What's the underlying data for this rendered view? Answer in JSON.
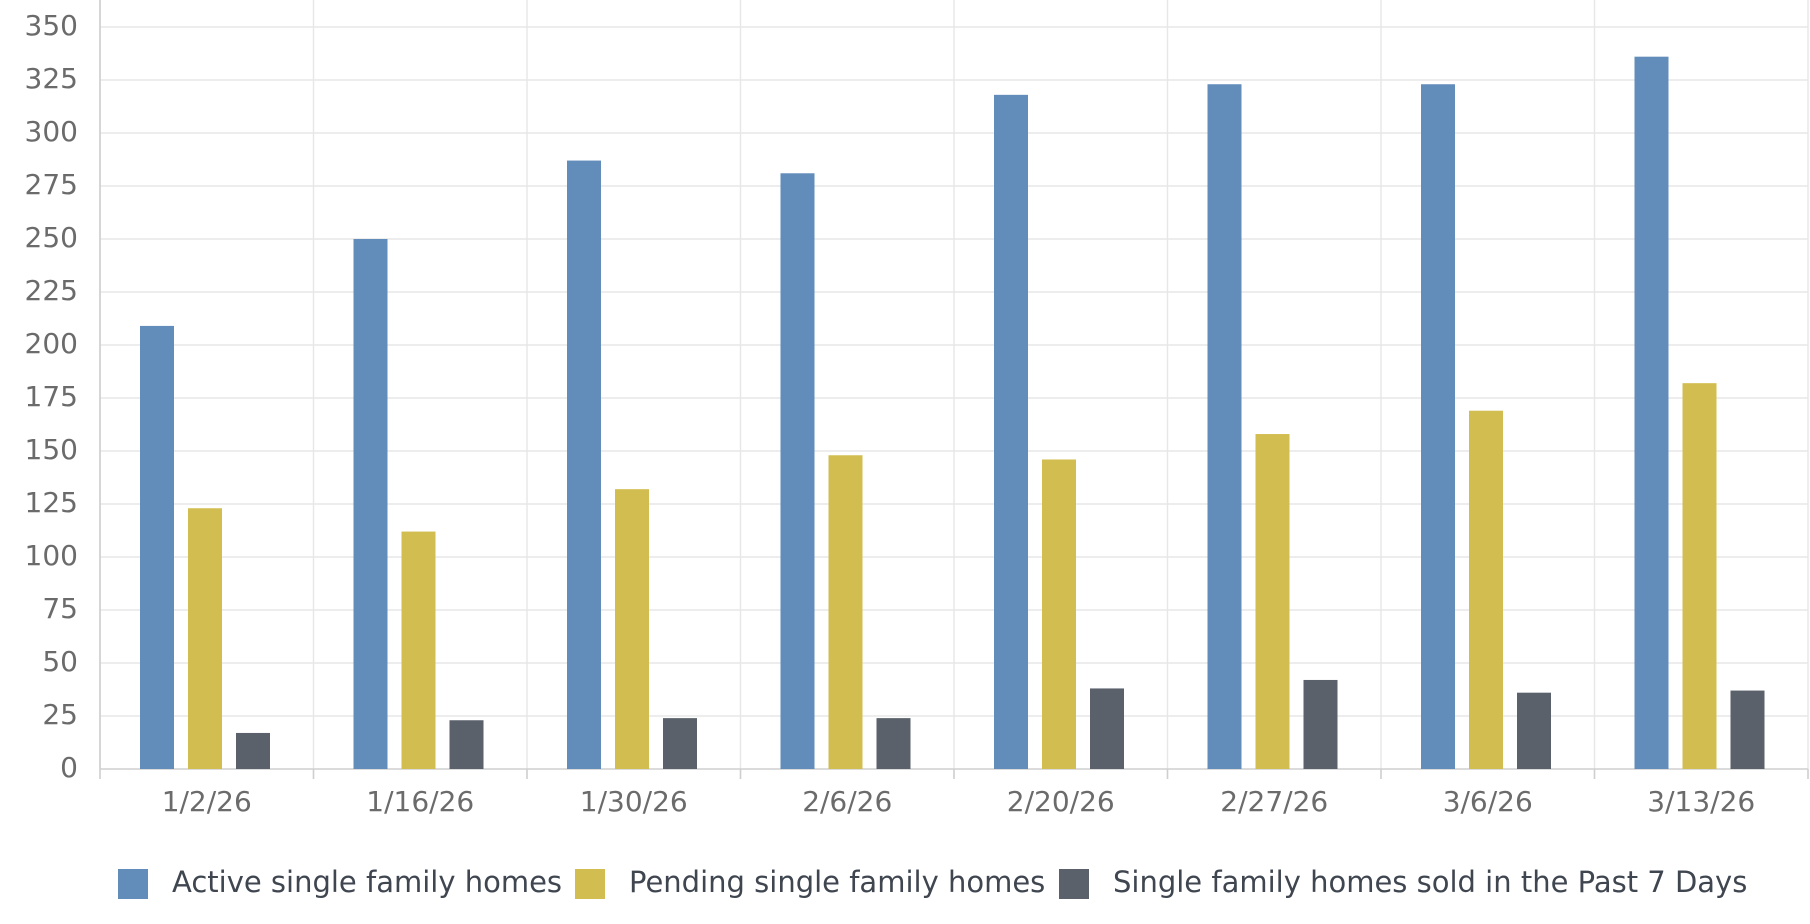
{
  "chart_data": {
    "type": "bar",
    "title": "",
    "xlabel": "",
    "ylabel": "",
    "ylim": [
      0,
      350
    ],
    "yticks": [
      0,
      25,
      50,
      75,
      100,
      125,
      150,
      175,
      200,
      225,
      250,
      275,
      300,
      325,
      350
    ],
    "grid": true,
    "legend_position": "bottom",
    "categories": [
      "1/2/26",
      "1/16/26",
      "1/30/26",
      "2/6/26",
      "2/20/26",
      "2/27/26",
      "3/6/26",
      "3/13/26"
    ],
    "series": [
      {
        "name": "Active single family homes",
        "color": "#628dbb",
        "values": [
          209,
          250,
          287,
          281,
          318,
          323,
          323,
          336
        ]
      },
      {
        "name": "Pending single family homes",
        "color": "#d2be50",
        "values": [
          123,
          112,
          132,
          148,
          146,
          158,
          169,
          182
        ]
      },
      {
        "name": "Single family homes sold in the Past 7 Days",
        "color": "#5a616a",
        "values": [
          17,
          23,
          24,
          24,
          38,
          42,
          36,
          37
        ]
      }
    ]
  }
}
